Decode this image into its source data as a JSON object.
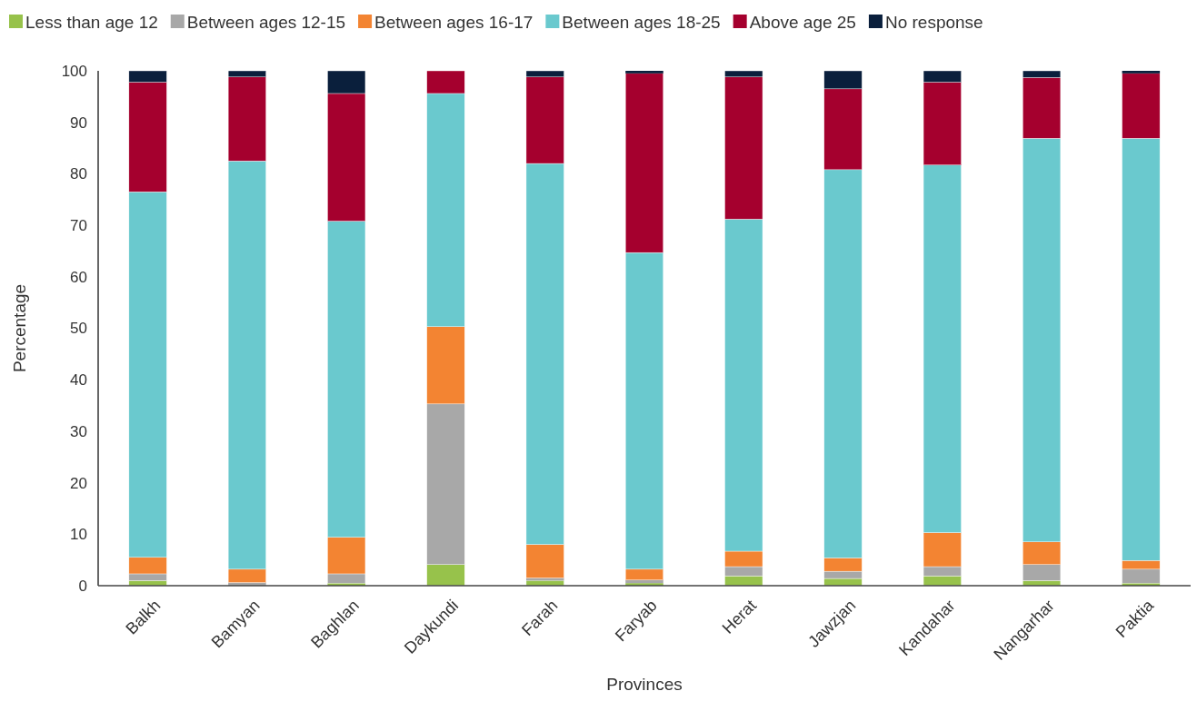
{
  "chart_data": {
    "type": "bar",
    "stacked": true,
    "xlabel": "Provinces",
    "ylabel": "Percentage",
    "legend": "top",
    "grid": false,
    "categories": [
      "Balkh",
      "Bamyan",
      "Baghlan",
      "Daykundi",
      "Farah",
      "Faryab",
      "Herat",
      "Jawzjan",
      "Kandahar",
      "Nangarhar",
      "Paktia"
    ],
    "ylim": [
      0,
      100
    ],
    "yticks": [
      0,
      10,
      20,
      30,
      40,
      50,
      60,
      70,
      80,
      90,
      100
    ],
    "series": [
      {
        "name": "Less than age 12",
        "color": "#97c24b",
        "values": [
          1,
          0,
          0.5,
          4.1,
          1,
          0.5,
          1.9,
          1.4,
          1.9,
          1,
          0.5
        ]
      },
      {
        "name": "Between ages 12-15",
        "color": "#a8a8a8",
        "values": [
          1.3,
          0.6,
          1.8,
          31.2,
          0.5,
          0.6,
          1.8,
          1.4,
          1.8,
          3.1,
          2.7
        ]
      },
      {
        "name": "Between ages 16-17",
        "color": "#f38432",
        "values": [
          3.2,
          2.6,
          7.1,
          15,
          6.5,
          2.1,
          3,
          2.6,
          6.6,
          4.4,
          1.7
        ]
      },
      {
        "name": "Between ages 18-25",
        "color": "#6ac9ce",
        "values": [
          71,
          79.3,
          61.4,
          45.3,
          74,
          61.5,
          64.5,
          75.4,
          71.4,
          78.4,
          82
        ]
      },
      {
        "name": "Above age 25",
        "color": "#a5002e",
        "values": [
          21.3,
          16.3,
          24.8,
          4.4,
          16.8,
          34.8,
          27.6,
          15.7,
          16.1,
          11.8,
          12.6
        ]
      },
      {
        "name": "No response",
        "color": "#0a1f3c",
        "values": [
          2.2,
          1.2,
          4.4,
          0,
          1.2,
          0.5,
          1.2,
          3.5,
          2.2,
          1.3,
          0.5
        ]
      }
    ]
  }
}
